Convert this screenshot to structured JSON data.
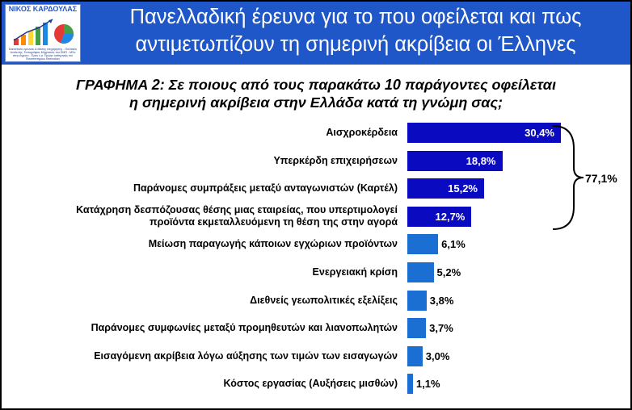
{
  "header": {
    "title_line1": "Πανελλαδική έρευνα για το που οφείλεται και πως",
    "title_line2": "αντιμετωπίζουν τη σημερινή ακρίβεια οι Έλληνες"
  },
  "logo": {
    "name": "ΝΙΚΟΣ ΚΑΡΔΟΥΛΑΣ",
    "caption": "Στατιστικός έρευνας & Μέσης επιχείρησης - Πολιτικός Αναλυτής. Τοπογράφος Μηχανικός του ΕΜΠ - MSc στην Αγροτο - Έρευ ε.α. Πρώην καθηγητής του Πανεπιστημίου Θεσσαλίας"
  },
  "chart_data": {
    "type": "bar",
    "title_line1": "ΓΡΑΦΗΜΑ 2: Σε ποιους από τους παρακάτω 10 παράγοντες οφείλεται",
    "title_line2": "η σημερινή ακρίβεια στην Ελλάδα κατά τη γνώμη σας;",
    "orientation": "horizontal",
    "categories": [
      "Αισχροκέρδεια",
      "Υπερκέρδη επιχειρήσεων",
      "Παράνομες συμπράξεις μεταξύ ανταγωνιστών (Καρτέλ)",
      "Κατάχρηση δεσπόζουσας θέσης μιας εταιρείας, που υπερτιμολογεί προϊόντα εκμεταλλευόμενη τη θέση της στην αγορά",
      "Μείωση παραγωγής κάποιων εγχώριων προϊόντων",
      "Ενεργειακή κρίση",
      "Διεθνείς γεωπολιτικές εξελίξεις",
      "Παράνομες συμφωνίες μεταξύ προμηθευτών και λιανοπωλητών",
      "Εισαγόμενη ακρίβεια λόγω αύξησης των τιμών των εισαγωγών",
      "Κόστος εργασίας (Αυξήσεις μισθών)"
    ],
    "label_lines": [
      [
        "Αισχροκέρδεια"
      ],
      [
        "Υπερκέρδη επιχειρήσεων"
      ],
      [
        "Παράνομες συμπράξεις μεταξύ ανταγωνιστών (Καρτέλ)"
      ],
      [
        "Κατάχρηση δεσπόζουσας θέσης μιας εταιρείας, που υπερτιμολογεί",
        "προϊόντα εκμεταλλευόμενη τη θέση της στην αγορά"
      ],
      [
        "Μείωση παραγωγής κάποιων εγχώριων προϊόντων"
      ],
      [
        "Ενεργειακή κρίση"
      ],
      [
        "Διεθνείς γεωπολιτικές εξελίξεις"
      ],
      [
        "Παράνομες συμφωνίες μεταξύ προμηθευτών και λιανοπωλητών"
      ],
      [
        "Εισαγόμενη ακρίβεια λόγω αύξησης των τιμών των εισαγωγών"
      ],
      [
        "Κόστος εργασίας (Αυξήσεις μισθών)"
      ]
    ],
    "values": [
      30.4,
      18.8,
      15.2,
      12.7,
      6.1,
      5.2,
      3.8,
      3.7,
      3.0,
      1.1
    ],
    "value_labels": [
      "30,4%",
      "18,8%",
      "15,2%",
      "12,7%",
      "6,1%",
      "5,2%",
      "3,8%",
      "3,7%",
      "3,0%",
      "1,1%"
    ],
    "highlighted_top": 4,
    "group_total_label": "77,1%",
    "xlim": [
      0,
      36
    ],
    "grid": false,
    "colors": {
      "top": "#0a0ac0",
      "rest": "#1b6fd3",
      "header": "#1f56c8"
    }
  }
}
